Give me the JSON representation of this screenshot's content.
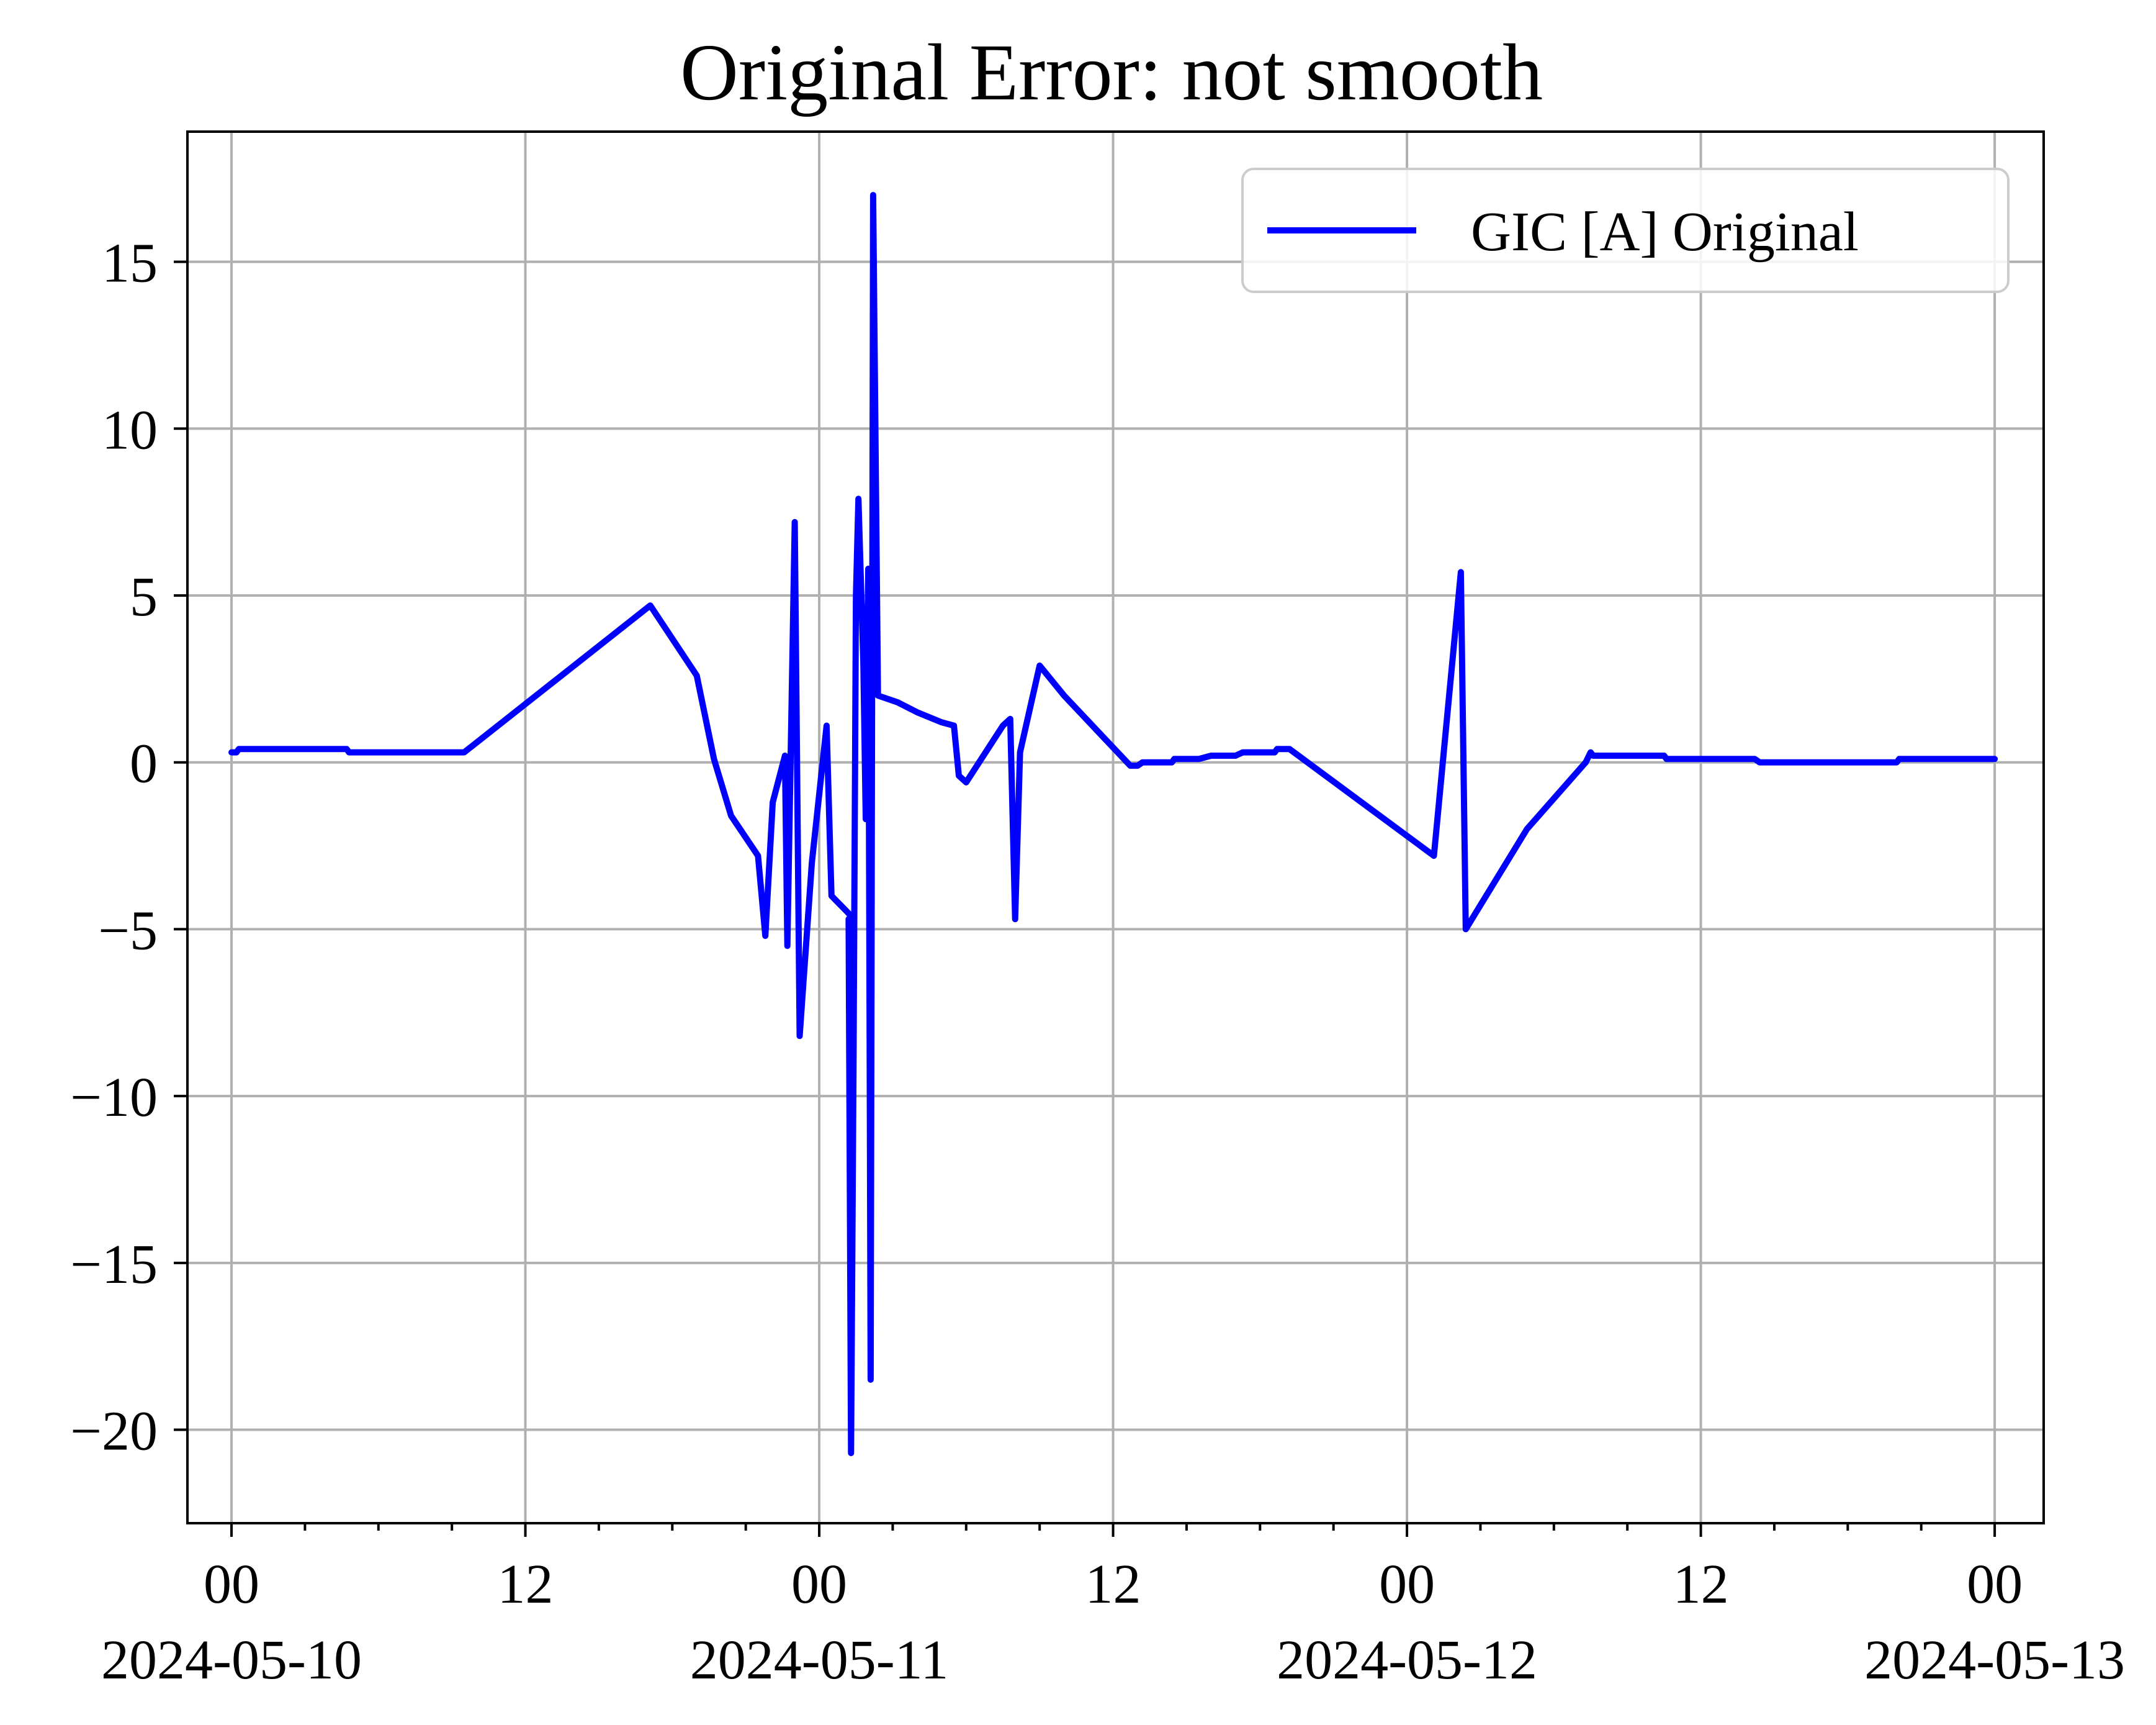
{
  "chart_data": {
    "type": "line",
    "title": "Original Error: not smooth",
    "xlabel": "",
    "ylabel": "",
    "x_axis": {
      "type": "datetime",
      "range": [
        "2024-05-09T22:12",
        "2024-05-13T02:00"
      ],
      "major_ticks": [
        {
          "x": "2024-05-10T00:00",
          "label": "00",
          "date_label": "2024-05-10"
        },
        {
          "x": "2024-05-10T12:00",
          "label": "12",
          "date_label": ""
        },
        {
          "x": "2024-05-11T00:00",
          "label": "00",
          "date_label": "2024-05-11"
        },
        {
          "x": "2024-05-11T12:00",
          "label": "12",
          "date_label": ""
        },
        {
          "x": "2024-05-12T00:00",
          "label": "00",
          "date_label": "2024-05-12"
        },
        {
          "x": "2024-05-12T12:00",
          "label": "12",
          "date_label": ""
        },
        {
          "x": "2024-05-13T00:00",
          "label": "00",
          "date_label": "2024-05-13"
        }
      ]
    },
    "y_axis": {
      "ylim": [
        -22.8,
        18.9
      ],
      "ticks": [
        15,
        10,
        5,
        0,
        -5,
        -10,
        -15,
        -20
      ],
      "tick_labels": [
        "15",
        "10",
        "5",
        "0",
        "−5",
        "−10",
        "−15",
        "−20"
      ]
    },
    "grid": true,
    "legend": {
      "position": "top-right"
    },
    "series": [
      {
        "name": "GIC [A] Original",
        "color": "#0000ff",
        "points": [
          {
            "x": "2024-05-10T00:00",
            "y": 0.3
          },
          {
            "x": "2024-05-10T00:12",
            "y": 0.3
          },
          {
            "x": "2024-05-10T00:18",
            "y": 0.4
          },
          {
            "x": "2024-05-10T02:24",
            "y": 0.4
          },
          {
            "x": "2024-05-10T04:42",
            "y": 0.4
          },
          {
            "x": "2024-05-10T04:48",
            "y": 0.3
          },
          {
            "x": "2024-05-10T09:30",
            "y": 0.3
          },
          {
            "x": "2024-05-10T17:06",
            "y": 4.7
          },
          {
            "x": "2024-05-10T19:00",
            "y": 2.6
          },
          {
            "x": "2024-05-10T19:42",
            "y": 0.1
          },
          {
            "x": "2024-05-10T20:24",
            "y": -1.6
          },
          {
            "x": "2024-05-10T21:30",
            "y": -2.8
          },
          {
            "x": "2024-05-10T21:48",
            "y": -5.2
          },
          {
            "x": "2024-05-10T22:06",
            "y": -1.2
          },
          {
            "x": "2024-05-10T22:36",
            "y": 0.2
          },
          {
            "x": "2024-05-10T22:42",
            "y": -5.5
          },
          {
            "x": "2024-05-10T23:00",
            "y": 7.2
          },
          {
            "x": "2024-05-10T23:12",
            "y": -8.2
          },
          {
            "x": "2024-05-10T23:42",
            "y": -3.0
          },
          {
            "x": "2024-05-11T00:18",
            "y": 1.1
          },
          {
            "x": "2024-05-11T00:30",
            "y": -4.0
          },
          {
            "x": "2024-05-11T01:18",
            "y": -4.6
          },
          {
            "x": "2024-05-11T01:12",
            "y": -4.7
          },
          {
            "x": "2024-05-11T01:18",
            "y": -20.7
          },
          {
            "x": "2024-05-11T01:24",
            "y": -9.0
          },
          {
            "x": "2024-05-11T01:30",
            "y": 5.0
          },
          {
            "x": "2024-05-11T01:36",
            "y": 7.9
          },
          {
            "x": "2024-05-11T01:48",
            "y": 3.0
          },
          {
            "x": "2024-05-11T01:54",
            "y": -1.7
          },
          {
            "x": "2024-05-11T02:00",
            "y": 5.8
          },
          {
            "x": "2024-05-11T02:06",
            "y": -18.5
          },
          {
            "x": "2024-05-11T02:12",
            "y": 17.0
          },
          {
            "x": "2024-05-11T02:24",
            "y": 2.0
          },
          {
            "x": "2024-05-11T03:12",
            "y": 1.8
          },
          {
            "x": "2024-05-11T04:00",
            "y": 1.5
          },
          {
            "x": "2024-05-11T05:00",
            "y": 1.2
          },
          {
            "x": "2024-05-11T05:30",
            "y": 1.1
          },
          {
            "x": "2024-05-11T05:42",
            "y": -0.4
          },
          {
            "x": "2024-05-11T06:00",
            "y": -0.6
          },
          {
            "x": "2024-05-11T07:30",
            "y": 1.1
          },
          {
            "x": "2024-05-11T07:48",
            "y": 1.3
          },
          {
            "x": "2024-05-11T08:00",
            "y": -4.7
          },
          {
            "x": "2024-05-11T08:12",
            "y": 0.3
          },
          {
            "x": "2024-05-11T09:00",
            "y": 2.9
          },
          {
            "x": "2024-05-11T10:00",
            "y": 2.0
          },
          {
            "x": "2024-05-11T12:42",
            "y": -0.1
          },
          {
            "x": "2024-05-11T13:00",
            "y": -0.1
          },
          {
            "x": "2024-05-11T13:12",
            "y": 0.0
          },
          {
            "x": "2024-05-11T14:24",
            "y": 0.0
          },
          {
            "x": "2024-05-11T14:30",
            "y": 0.1
          },
          {
            "x": "2024-05-11T15:30",
            "y": 0.1
          },
          {
            "x": "2024-05-11T16:00",
            "y": 0.2
          },
          {
            "x": "2024-05-11T17:00",
            "y": 0.2
          },
          {
            "x": "2024-05-11T17:18",
            "y": 0.3
          },
          {
            "x": "2024-05-11T18:36",
            "y": 0.3
          },
          {
            "x": "2024-05-11T18:42",
            "y": 0.4
          },
          {
            "x": "2024-05-11T19:12",
            "y": 0.4
          },
          {
            "x": "2024-05-12T01:06",
            "y": -2.8
          },
          {
            "x": "2024-05-12T02:12",
            "y": 5.7
          },
          {
            "x": "2024-05-12T02:24",
            "y": -5.0
          },
          {
            "x": "2024-05-12T04:54",
            "y": -2.0
          },
          {
            "x": "2024-05-12T07:18",
            "y": 0.0
          },
          {
            "x": "2024-05-12T07:30",
            "y": 0.3
          },
          {
            "x": "2024-05-12T07:36",
            "y": 0.2
          },
          {
            "x": "2024-05-12T09:06",
            "y": 0.2
          },
          {
            "x": "2024-05-12T09:12",
            "y": 0.2
          },
          {
            "x": "2024-05-12T10:30",
            "y": 0.2
          },
          {
            "x": "2024-05-12T10:36",
            "y": 0.1
          },
          {
            "x": "2024-05-12T14:12",
            "y": 0.1
          },
          {
            "x": "2024-05-12T14:24",
            "y": 0.0
          },
          {
            "x": "2024-05-12T20:00",
            "y": 0.0
          },
          {
            "x": "2024-05-12T20:06",
            "y": 0.1
          },
          {
            "x": "2024-05-13T00:00",
            "y": 0.1
          }
        ]
      }
    ]
  }
}
